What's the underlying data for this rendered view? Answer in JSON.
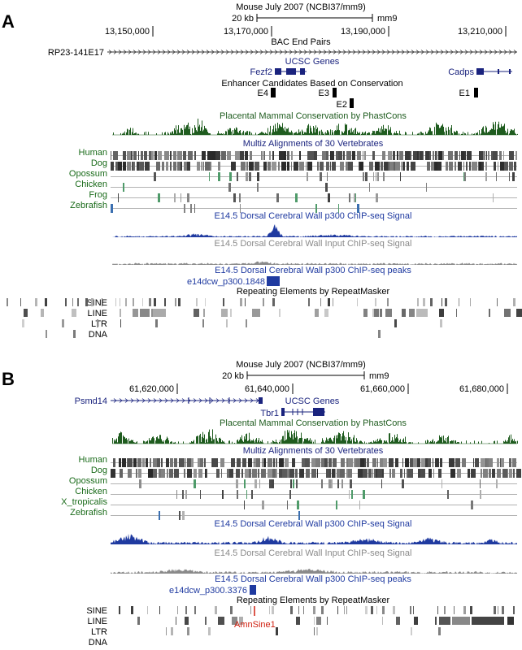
{
  "panels": [
    {
      "letter": "A",
      "assembly": "Mouse July 2007 (NCBI37/mm9)",
      "scale_label": "20 kb",
      "assembly_short": "mm9",
      "positions": [
        "13,150,000",
        "13,170,000",
        "13,190,000",
        "13,210,000"
      ],
      "bac_title": "BAC End Pairs",
      "bac_name": "RP23-141E17",
      "genes_title": "UCSC Genes",
      "genes": [
        "Fezf2",
        "Cadps"
      ],
      "enh_title": "Enhancer Candidates Based on Conservation",
      "enhancers": [
        "E4",
        "E3",
        "E2",
        "E1"
      ],
      "cons_title": "Placental Mammal Conservation by PhastCons",
      "multiz_title": "Multiz Alignments of 30 Vertebrates",
      "species": [
        "Human",
        "Dog",
        "Opossum",
        "Chicken",
        "Frog",
        "Zebrafish"
      ],
      "p300_title": "E14.5 Dorsal Cerebral Wall p300 ChIP-seq Signal",
      "input_title": "E14.5 Dorsal Cerebral Wall Input ChIP-seq Signal",
      "peaks_title": "E14.5 Dorsal Cerebral Wall p300 ChIP-seq peaks",
      "peak_name": "e14dcw_p300.1848",
      "repeat_title": "Repeating Elements by RepeatMasker",
      "repeat_classes": [
        "SINE",
        "LINE",
        "LTR",
        "DNA"
      ]
    },
    {
      "letter": "B",
      "assembly": "Mouse July 2007 (NCBI37/mm9)",
      "scale_label": "20 kb",
      "assembly_short": "mm9",
      "positions": [
        "61,620,000",
        "61,640,000",
        "61,660,000",
        "61,680,000"
      ],
      "genes_title": "UCSC Genes",
      "genes": [
        "Psmd14",
        "Tbr1"
      ],
      "cons_title": "Placental Mammal Conservation by PhastCons",
      "multiz_title": "Multiz Alignments of 30 Vertebrates",
      "species": [
        "Human",
        "Dog",
        "Opossum",
        "Chicken",
        "X_tropicalis",
        "Zebrafish"
      ],
      "p300_title": "E14.5 Dorsal Cerebral Wall p300 ChIP-seq Signal",
      "input_title": "E14.5 Dorsal Cerebral Wall Input ChIP-seq Signal",
      "peaks_title": "E14.5 Dorsal Cerebral Wall p300 ChIP-seq peaks",
      "peak_name": "e14dcw_p300.3376",
      "repeat_title": "Repeating Elements by RepeatMasker",
      "repeat_classes": [
        "SINE",
        "LINE",
        "LTR",
        "DNA"
      ],
      "repeat_annotation": "AmnSine1"
    }
  ],
  "colors": {
    "gene": "#1a237e",
    "conservation": "#1f5c1f",
    "species_label": "#1a6b1a",
    "p300": "#1f3aa0",
    "input": "#8a8a8a",
    "annotation": "#d02010"
  }
}
